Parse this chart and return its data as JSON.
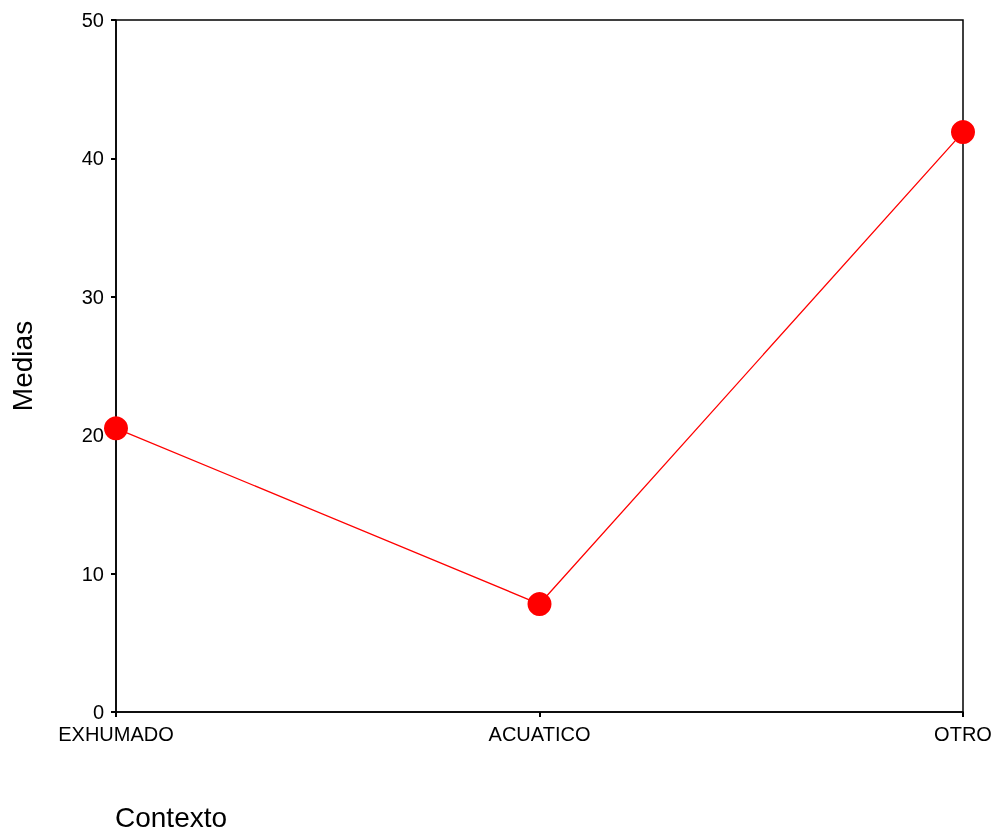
{
  "chart_data": {
    "type": "line",
    "xlabel": "Contexto",
    "ylabel": "Medias",
    "categories": [
      "EXHUMADO",
      "ACUATICO",
      "OTRO"
    ],
    "series": [
      {
        "color": "#ff0000",
        "values": [
          20.5,
          7.8,
          41.9
        ]
      }
    ],
    "ylim": [
      0,
      50
    ],
    "yticks": [
      0,
      10,
      20,
      30,
      40,
      50
    ],
    "grid": false,
    "marker": "circle",
    "line_style": "solid"
  }
}
